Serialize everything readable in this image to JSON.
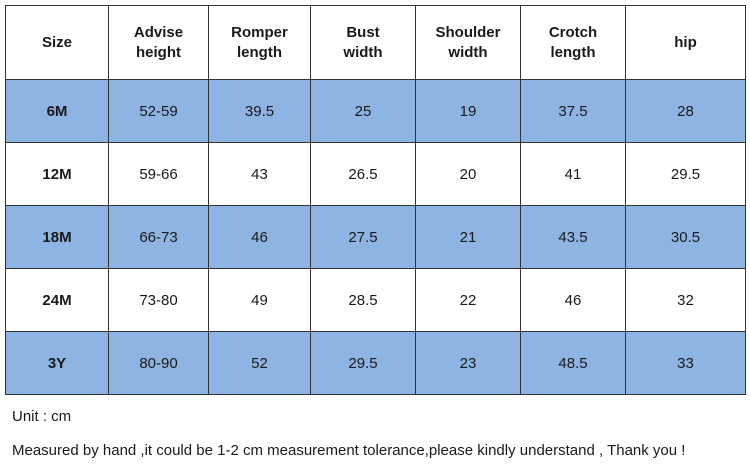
{
  "table": {
    "header": [
      "Size",
      "Advise\nheight",
      "Romper\nlength",
      "Bust\nwidth",
      "Shoulder\nwidth",
      "Crotch\nlength",
      "hip"
    ],
    "rows": [
      [
        "6M",
        "52-59",
        39.5,
        25,
        19,
        37.5,
        28
      ],
      [
        "12M",
        "59-66",
        43,
        26.5,
        20,
        41,
        29.5
      ],
      [
        "18M",
        "66-73",
        46,
        27.5,
        21,
        43.5,
        30.5
      ],
      [
        "24M",
        "73-80",
        49,
        28.5,
        22,
        46,
        32
      ],
      [
        "3Y",
        "80-90",
        52,
        29.5,
        23,
        48.5,
        33
      ]
    ]
  },
  "notes": [
    "Unit : cm",
    "Measured by hand ,it could be 1-2 cm measurement tolerance,please kindly understand , Thank you !"
  ]
}
